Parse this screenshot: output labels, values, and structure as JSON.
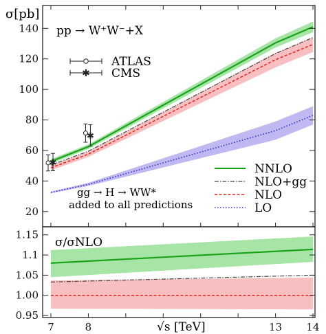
{
  "chart_data": [
    {
      "type": "line",
      "ylabel": "σ[pb]",
      "process_label": "pp → W⁺W⁻+X",
      "note_line1": "gg → H → WW*",
      "note_line2": "added to all predictions",
      "x": [
        7,
        8,
        13,
        14
      ],
      "xlim": [
        7,
        14
      ],
      "ylim": [
        10,
        155
      ],
      "y_ticks": [
        20,
        40,
        60,
        80,
        100,
        120,
        140
      ],
      "grid": false,
      "series": [
        {
          "name": "NNLO",
          "style": "solid",
          "color": "#19a319",
          "band_color": "#5ccf5c",
          "center": [
            52.8,
            62.5,
            130.5,
            141
          ],
          "lo": [
            51.3,
            61.0,
            127.5,
            137.5
          ],
          "hi": [
            54.3,
            64.0,
            133.5,
            144.5
          ]
        },
        {
          "name": "NLO+gg",
          "style": "dashdot",
          "color": "#444444",
          "center": [
            50.5,
            59.5,
            123.5,
            134
          ]
        },
        {
          "name": "NLO",
          "style": "dashed",
          "color": "#e8201c",
          "band_color": "#f08a8a",
          "center": [
            48.7,
            57.6,
            119.5,
            129.5
          ],
          "lo": [
            47.0,
            55.8,
            114.5,
            124.5
          ],
          "hi": [
            50.3,
            59.3,
            124.0,
            134.0
          ]
        },
        {
          "name": "LO",
          "style": "dotted",
          "color": "#2b2bcc",
          "band_color": "#8a7ee6",
          "center": [
            32.5,
            37.8,
            73,
            83
          ],
          "lo": [
            32.0,
            36.8,
            67,
            77
          ],
          "hi": [
            33.0,
            38.8,
            79,
            89
          ]
        }
      ],
      "measurements": [
        {
          "name": "ATLAS",
          "marker": "open-circle",
          "x": 7,
          "y": 51.9,
          "yerr": 5.3
        },
        {
          "name": "CMS",
          "marker": "star",
          "x": 7,
          "y": 52.4,
          "yerr": 5.7
        },
        {
          "name": "ATLAS",
          "marker": "open-circle",
          "x": 8,
          "y": 71.4,
          "yerr": 6.0
        },
        {
          "name": "CMS",
          "marker": "star",
          "x": 8,
          "y": 69.9,
          "yerr": 7.0
        }
      ],
      "legend_position": "bottom-right"
    },
    {
      "type": "line",
      "ylabel": "σ/σNLO",
      "xlabel": "√s [TeV]",
      "x": [
        7,
        14
      ],
      "xlim": [
        7,
        14
      ],
      "ylim": [
        0.945,
        1.17
      ],
      "y_tick_labels": [
        "1.15",
        "1.1",
        "1.05",
        "1.00",
        "0.95"
      ],
      "y_ticks": [
        1.15,
        1.1,
        1.05,
        1.0,
        0.95
      ],
      "x_tick_labels": [
        "7",
        "8",
        "13",
        "14"
      ],
      "grid": false,
      "series": [
        {
          "name": "NNLO",
          "style": "solid",
          "color": "#19a319",
          "band_color": "#5ccf5c",
          "center": [
            1.08,
            1.114
          ],
          "lo": [
            1.045,
            1.083
          ],
          "hi": [
            1.112,
            1.146
          ]
        },
        {
          "name": "NLO+gg",
          "style": "dashdot",
          "color": "#444444",
          "center": [
            1.033,
            1.05
          ]
        },
        {
          "name": "NLO",
          "style": "dashed",
          "color": "#e8201c",
          "band_color": "#f08a8a",
          "center": [
            1.0,
            1.0
          ],
          "lo": [
            0.967,
            0.965
          ],
          "hi": [
            1.037,
            1.044
          ]
        }
      ]
    }
  ]
}
